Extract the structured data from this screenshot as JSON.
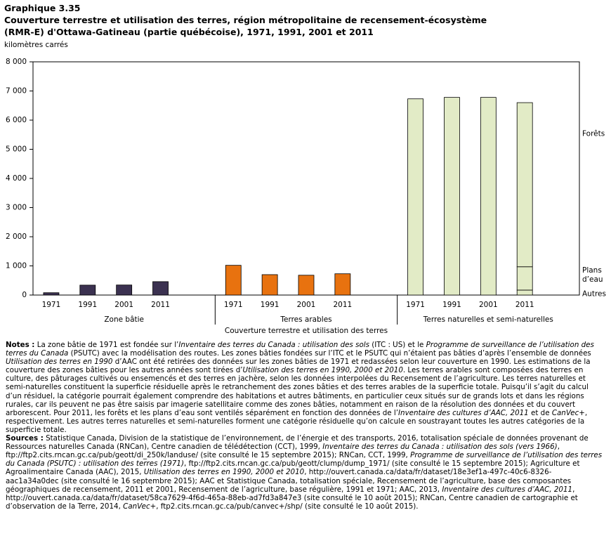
{
  "chart_data": {
    "type": "bar",
    "label": "Graphique 3.35",
    "title": "Couverture terrestre et utilisation des terres, région métropolitaine de recensement-écosystème (RMR-E) d'Ottawa-Gatineau (partie québécoise), 1971, 1991, 2001 et 2011",
    "y_unit": "kilomètres carrés",
    "x_label": "Couverture terrestre et utilisation des terres",
    "ylim": [
      0,
      8000
    ],
    "yticks": [
      0,
      {
        "value": 1000,
        "label": "1 000"
      },
      {
        "value": 2000,
        "label": "2 000"
      },
      {
        "value": 3000,
        "label": "3 000"
      },
      {
        "value": 4000,
        "label": "4 000"
      },
      {
        "value": 5000,
        "label": "5 000"
      },
      {
        "value": 6000,
        "label": "6 000"
      },
      {
        "value": 7000,
        "label": "7 000"
      },
      {
        "value": 8000,
        "label": "8 000"
      }
    ],
    "groups": [
      {
        "name": "Zone bâtie",
        "color": "#3b3150",
        "categories": [
          "1971",
          "1991",
          "2001",
          "2011"
        ],
        "values": [
          80,
          340,
          345,
          460
        ]
      },
      {
        "name": "Terres arables",
        "color": "#e8720f",
        "categories": [
          "1971",
          "1991",
          "2001",
          "2011"
        ],
        "values": [
          1020,
          700,
          680,
          730
        ]
      },
      {
        "name": "Terres naturelles et semi-naturelles",
        "color": "#e2ebc6",
        "categories": [
          "1971",
          "1991",
          "2001",
          "2011"
        ],
        "values": [
          6730,
          6780,
          6780,
          null
        ],
        "stack": {
          "index": 3,
          "segments": [
            {
              "name": "Autres",
              "value": 170
            },
            {
              "name": "Plans d’eau",
              "value": 800
            },
            {
              "name": "Forêts",
              "value": 5630
            }
          ]
        }
      }
    ]
  },
  "notes": {
    "label": "Notes :",
    "parts": [
      {
        "text": "La zone bâtie de 1971 est fondée sur l’"
      },
      {
        "text": "Inventaire des terres du Canada : utilisation des sols",
        "i": true
      },
      {
        "text": " (ITC : US) et le "
      },
      {
        "text": "Programme de surveillance de l’utilisation des terres du Canada",
        "i": true
      },
      {
        "text": " (PSUTC) avec la modélisation des routes. Les zones bâties fondées sur l’ITC et le PSUTC qui n’étaient pas bâties d’après l’ensemble de données "
      },
      {
        "text": "Utilisation des terres en 1990",
        "i": true
      },
      {
        "text": " d’AAC ont été retirées des données sur les zones bâties de 1971 et redassées selon leur couverture en 1990. Les estimations de la couverture des zones bâties pour les autres années sont tirées d’"
      },
      {
        "text": "Utilisation des terres en 1990, 2000 et 2010",
        "i": true
      },
      {
        "text": ". Les terres arables sont composées des terres en culture, des pâturages cultivés ou ensemencés et des terres en jachère, selon les données interpolées du Recensement de l’agriculture. Les terres naturelles et semi-naturelles constituent la superficie résiduelle après le retranchement des zones bâties et des terres arables de la superficie totale. Puisqu’il s’agit du calcul d’un résiduel, la catégorie pourrait également comprendre des habitations et autres bâtiments, en particulier ceux situés sur de grands lots et dans les régions rurales, car ils peuvent ne pas être saisis par imagerie satellitaire comme des zones bâties, notamment en raison de la résolution des données et du couvert arborescent. Pour 2011, les forêts et les plans d’eau sont ventilés séparément en fonction des données de l’"
      },
      {
        "text": "Inventaire des cultures d’AAC, 2011",
        "i": true
      },
      {
        "text": " et de "
      },
      {
        "text": "CanVec+",
        "i": true
      },
      {
        "text": ", respectivement. Les autres terres naturelles et semi-naturelles forment une catégorie résiduelle qu’on calcule en soustrayant toutes les autres catégories de la superficie totale."
      }
    ]
  },
  "sources": {
    "label": "Sources :",
    "parts": [
      {
        "text": "Statistique Canada, Division de la statistique de l’environnement, de l’énergie et des transports, 2016, totalisation spéciale de données provenant de Ressources naturelles Canada (RNCan), Centre canadien de télédétection (CCT), 1999, "
      },
      {
        "text": "Inventaire des terres du Canada : utilisation des sols (vers 1966)",
        "i": true
      },
      {
        "text": ", ftp://ftp2.cits.rncan.gc.ca/pub/geott/di_250k/landuse/ (site consulté le 15 septembre 2015); RNCan, CCT, 1999, "
      },
      {
        "text": "Programme de surveillance de l’utilisation des terres du Canada (PSUTC) : utilisation des terres (1971)",
        "i": true
      },
      {
        "text": ", ftp://ftp2.cits.rncan.gc.ca/pub/geott/clump/dump_1971/ (site consulté le 15 septembre 2015); Agriculture et Agroalimentaire Canada (AAC), 2015, "
      },
      {
        "text": "Utilisation des terres en 1990, 2000 et 2010",
        "i": true
      },
      {
        "text": ", http://ouvert.canada.ca/data/fr/dataset/18e3ef1a-497c-40c6-8326-aac1a34a0dec (site consulté le 16 septembre 2015); AAC et Statistique Canada, totalisation spéciale, Recensement de l’agriculture, base des composantes géographiques de recensement, 2011 et 2001, Recensement de l’agriculture, base régulière, 1991 et 1971; AAC, 2013, "
      },
      {
        "text": "Inventaire des cultures d’AAC, 2011",
        "i": true
      },
      {
        "text": ", http://ouvert.canada.ca/data/fr/dataset/58ca7629-4f6d-465a-88eb-ad7fd3a847e3 (site consulté le 10 août 2015); RNCan, Centre canadien de cartographie et d’observation de la Terre, 2014, "
      },
      {
        "text": "CanVec+",
        "i": true
      },
      {
        "text": ", ftp2.cits.rncan.gc.ca/pub/canvec+/shp/ (site consulté le 10 août 2015)."
      }
    ]
  }
}
